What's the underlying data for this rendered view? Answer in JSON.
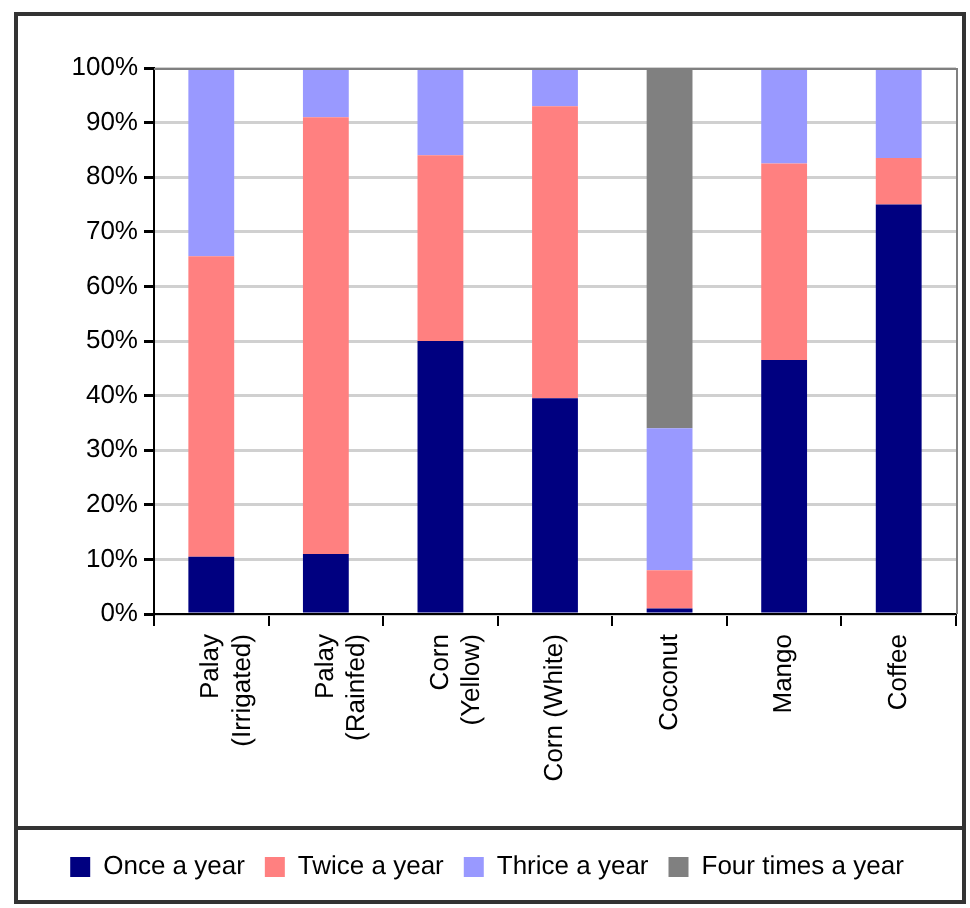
{
  "chart_data": {
    "type": "bar",
    "stacked": true,
    "categories": [
      "Palay (Irrigated)",
      "Palay (Rainfed)",
      "Corn (Yellow)",
      "Corn (White)",
      "Coconut",
      "Mango",
      "Coffee"
    ],
    "series": [
      {
        "name": "Once a year",
        "color": "#000080",
        "values": [
          10.5,
          11,
          50,
          39.5,
          1,
          46.5,
          75
        ]
      },
      {
        "name": "Twice a year",
        "color": "#ff8080",
        "values": [
          55,
          80,
          34,
          53.5,
          7,
          36,
          8.5
        ]
      },
      {
        "name": "Thrice a year",
        "color": "#9999ff",
        "values": [
          34.5,
          9,
          16,
          7,
          26,
          17.5,
          16.5
        ]
      },
      {
        "name": "Four times a year",
        "color": "#808080",
        "values": [
          0,
          0,
          0,
          0,
          66,
          0,
          0
        ]
      }
    ],
    "ylim": [
      0,
      100
    ],
    "yticks": [
      {
        "value": 0,
        "label": "0%"
      },
      {
        "value": 10,
        "label": "10%"
      },
      {
        "value": 20,
        "label": "20%"
      },
      {
        "value": 30,
        "label": "30%"
      },
      {
        "value": 40,
        "label": "40%"
      },
      {
        "value": 50,
        "label": "50%"
      },
      {
        "value": 60,
        "label": "60%"
      },
      {
        "value": 70,
        "label": "70%"
      },
      {
        "value": 80,
        "label": "80%"
      },
      {
        "value": 90,
        "label": "90%"
      },
      {
        "value": 100,
        "label": "100%"
      }
    ],
    "grid": "y",
    "legend": "bottom"
  }
}
